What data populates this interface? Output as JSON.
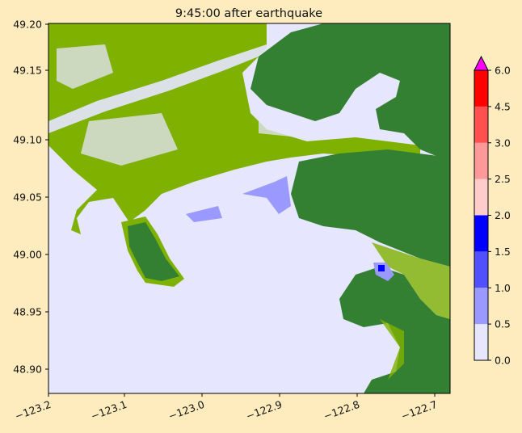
{
  "title": "9:45:00 after earthquake",
  "map": {
    "x_ticks": [
      "−123.2",
      "−123.1",
      "−123.0",
      "−122.9",
      "−122.8",
      "−122.7"
    ],
    "y_ticks": [
      "49.20",
      "49.15",
      "49.10",
      "49.05",
      "49.00",
      "48.95",
      "48.90"
    ],
    "xlim": [
      -123.2,
      -122.69
    ],
    "ylim": [
      48.88,
      49.2
    ],
    "colors": {
      "water": "#e6e6ff",
      "land_low": "#7fb200",
      "land_high": "#338033"
    }
  },
  "colorbar": {
    "tick_labels": [
      "0.0",
      "0.5",
      "1.0",
      "1.5",
      "2.0",
      "2.5",
      "3.0",
      "4.5",
      "6.0"
    ],
    "levels": [
      0,
      0.5,
      1.0,
      1.5,
      2.0,
      2.5,
      3.0,
      4.5,
      6.0
    ],
    "colors": [
      "#e6e6ff",
      "#9999ff",
      "#5050ff",
      "#0000ff",
      "#ffcccc",
      "#ff9999",
      "#ff5050",
      "#ff0000"
    ],
    "extend_color": "#ff00ff"
  }
}
